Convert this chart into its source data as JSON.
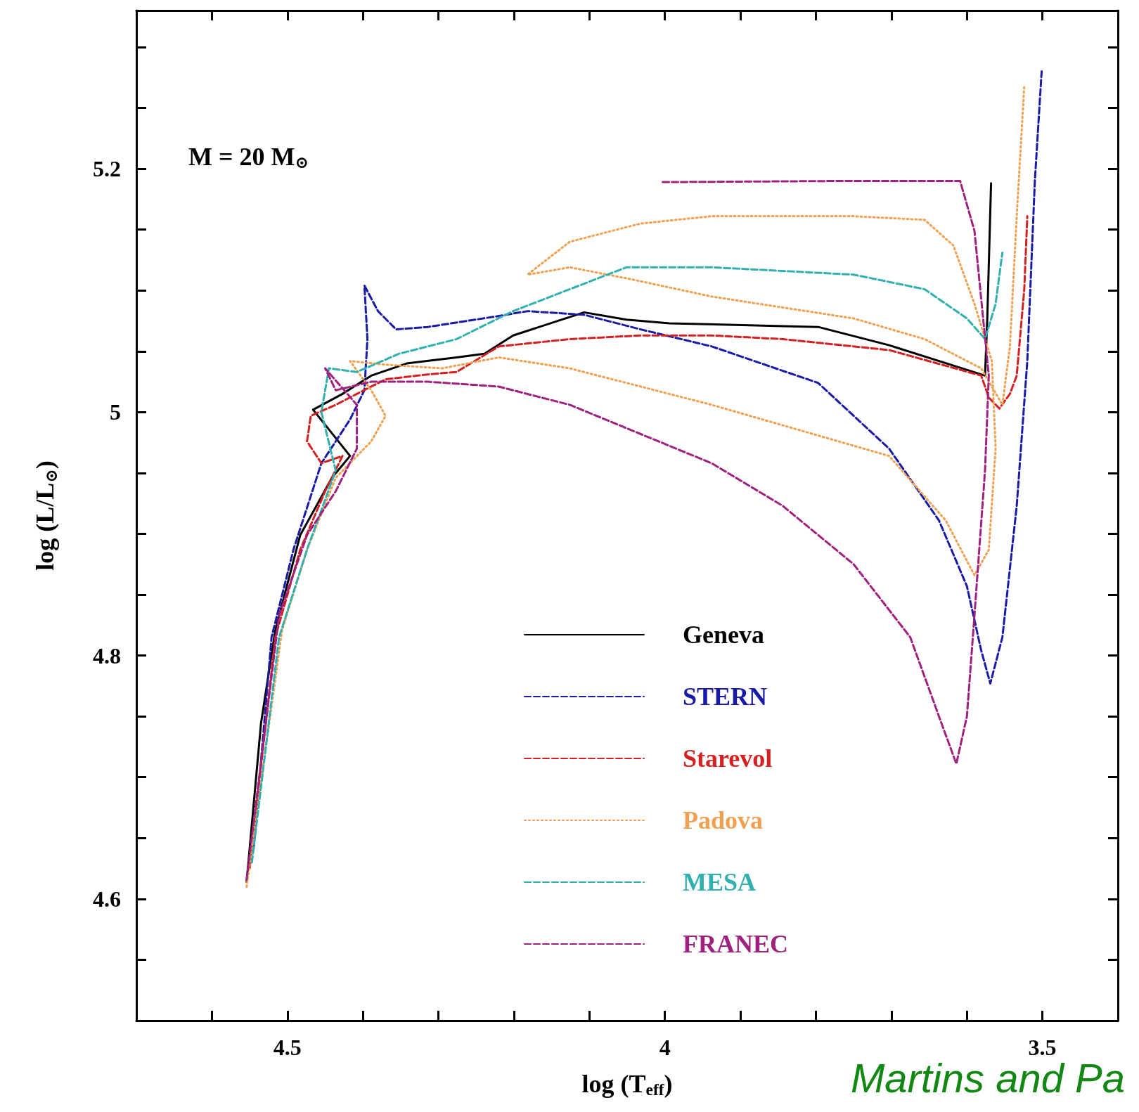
{
  "chart_data": {
    "type": "line",
    "xlabel": "log (T$_{eff}$)",
    "ylabel": "log (L/L$_{⊙}$)",
    "annotations": [
      "M = 20 M$_{⊙}$",
      "Martins and Pa"
    ],
    "xlim": [
      4.7,
      3.4
    ],
    "xticks": [
      {
        "value": 4.6,
        "label": null
      },
      4.5,
      {
        "value": 4.4,
        "label": null
      },
      {
        "value": 4.3,
        "label": null
      },
      {
        "value": 4.2,
        "label": null
      },
      {
        "value": 4.1,
        "label": null
      },
      4,
      {
        "value": 3.9,
        "label": null
      },
      {
        "value": 3.8,
        "label": null
      },
      {
        "value": 3.7,
        "label": null
      },
      {
        "value": 3.6,
        "label": null
      },
      3.5
    ],
    "ylim": [
      4.5,
      5.33
    ],
    "yticks": [
      {
        "value": 4.55,
        "label": null
      },
      4.6,
      {
        "value": 4.65,
        "label": null
      },
      {
        "value": 4.7,
        "label": null
      },
      {
        "value": 4.75,
        "label": null
      },
      4.8,
      {
        "value": 4.85,
        "label": null
      },
      {
        "value": 4.9,
        "label": null
      },
      {
        "value": 4.95,
        "label": null
      },
      5,
      {
        "value": 5.05,
        "label": null
      },
      {
        "value": 5.1,
        "label": null
      },
      {
        "value": 5.15,
        "label": null
      },
      5.2,
      {
        "value": 5.25,
        "label": null
      },
      {
        "value": 5.3,
        "label": null
      }
    ],
    "grid": false,
    "legend": "bottom",
    "marker": "none",
    "series": [
      {
        "name": "Geneva",
        "color": "#000000",
        "line_style": "solid",
        "x": [
          4.554,
          4.535,
          4.516,
          4.483,
          4.441,
          4.417,
          4.466,
          4.427,
          4.389,
          4.342,
          4.276,
          4.239,
          4.201,
          4.107,
          4.051,
          3.994,
          3.797,
          3.703,
          3.576,
          3.573,
          3.568
        ],
        "values": [
          4.614,
          4.744,
          4.821,
          4.899,
          4.946,
          4.964,
          5.002,
          5.015,
          5.03,
          5.04,
          5.045,
          5.048,
          5.063,
          5.082,
          5.076,
          5.073,
          5.07,
          5.055,
          5.03,
          5.077,
          5.188
        ]
      },
      {
        "name": "STERN",
        "color": "#1a1aa8",
        "line_style": "dashed",
        "x": [
          4.545,
          4.521,
          4.492,
          4.455,
          4.417,
          4.398,
          4.394,
          4.398,
          4.38,
          4.356,
          4.314,
          4.22,
          4.182,
          4.107,
          4.032,
          3.938,
          3.797,
          3.703,
          3.637,
          3.6,
          3.581,
          3.569,
          3.553,
          3.534,
          3.52,
          3.51,
          3.501
        ],
        "values": [
          4.64,
          4.815,
          4.887,
          4.958,
          4.994,
          5.018,
          5.06,
          5.104,
          5.083,
          5.068,
          5.07,
          5.079,
          5.083,
          5.08,
          5.068,
          5.054,
          5.024,
          4.97,
          4.911,
          4.857,
          4.804,
          4.777,
          4.815,
          4.923,
          5.042,
          5.19,
          5.28
        ]
      },
      {
        "name": "Starevol",
        "color": "#d42020",
        "line_style": "dashed",
        "x": [
          4.55,
          4.516,
          4.483,
          4.45,
          4.427,
          4.455,
          4.474,
          4.469,
          4.436,
          4.408,
          4.37,
          4.314,
          4.276,
          4.22,
          4.126,
          4.032,
          3.938,
          3.844,
          3.703,
          3.581,
          3.571,
          3.557,
          3.543,
          3.534,
          3.524,
          3.52
        ],
        "values": [
          4.625,
          4.815,
          4.887,
          4.935,
          4.964,
          4.958,
          4.976,
          4.997,
          5.006,
          5.015,
          5.027,
          5.031,
          5.033,
          5.054,
          5.06,
          5.063,
          5.063,
          5.06,
          5.051,
          5.03,
          5.012,
          5.003,
          5.015,
          5.03,
          5.101,
          5.161
        ]
      },
      {
        "name": "Padova",
        "color": "#f0a050",
        "line_style": "dotted",
        "x": [
          4.554,
          4.507,
          4.474,
          4.436,
          4.389,
          4.37,
          4.389,
          4.417,
          4.37,
          4.295,
          4.22,
          4.126,
          3.938,
          3.703,
          3.628,
          3.59,
          3.571,
          3.562,
          3.567,
          3.59,
          3.618,
          3.656,
          3.75,
          3.938,
          4.032,
          4.126,
          4.182,
          4.126,
          4.051,
          3.938,
          3.75,
          3.656,
          3.581,
          3.553,
          3.543,
          3.534,
          3.524
        ],
        "values": [
          4.61,
          4.821,
          4.887,
          4.946,
          4.976,
          4.997,
          5.018,
          5.042,
          5.039,
          5.036,
          5.045,
          5.036,
          5.006,
          4.964,
          4.911,
          4.866,
          4.887,
          4.97,
          5.042,
          5.089,
          5.137,
          5.158,
          5.161,
          5.161,
          5.155,
          5.14,
          5.113,
          5.119,
          5.11,
          5.095,
          5.077,
          5.06,
          5.036,
          5.006,
          5.054,
          5.161,
          5.268
        ]
      },
      {
        "name": "MESA",
        "color": "#30b0b0",
        "line_style": "dashed",
        "x": [
          4.547,
          4.511,
          4.474,
          4.436,
          4.455,
          4.445,
          4.408,
          4.352,
          4.276,
          4.201,
          4.126,
          4.051,
          3.938,
          3.75,
          3.656,
          3.6,
          3.576,
          3.562,
          3.553
        ],
        "values": [
          4.63,
          4.815,
          4.887,
          4.952,
          5.0,
          5.036,
          5.033,
          5.048,
          5.06,
          5.083,
          5.101,
          5.119,
          5.119,
          5.113,
          5.101,
          5.077,
          5.06,
          5.089,
          5.131
        ]
      },
      {
        "name": "FRANEC",
        "color": "#a02080",
        "line_style": "dashed",
        "x": [
          4.554,
          4.511,
          4.474,
          4.436,
          4.408,
          4.408,
          4.45,
          4.436,
          4.389,
          4.314,
          4.22,
          4.126,
          4.032,
          3.938,
          3.844,
          3.75,
          3.675,
          3.637,
          3.614,
          3.6,
          3.59,
          3.576,
          3.571,
          3.59,
          3.609,
          3.75,
          4.004
        ],
        "values": [
          4.616,
          4.833,
          4.899,
          4.935,
          4.97,
          5.006,
          5.036,
          5.018,
          5.025,
          5.025,
          5.021,
          5.006,
          4.982,
          4.958,
          4.923,
          4.875,
          4.815,
          4.75,
          4.711,
          4.75,
          4.833,
          4.952,
          5.03,
          5.149,
          5.19,
          5.19,
          5.189
        ]
      }
    ]
  }
}
